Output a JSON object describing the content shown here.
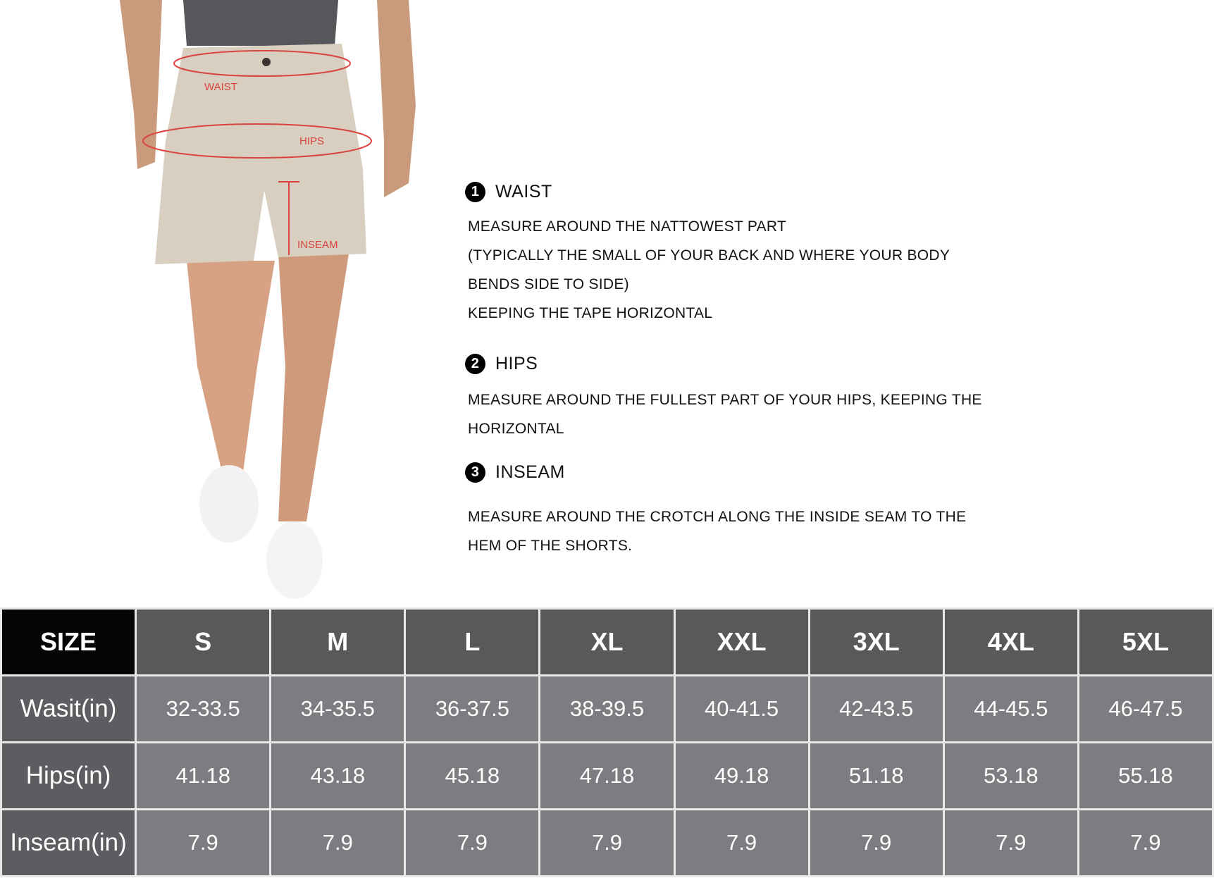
{
  "figure": {
    "labels": {
      "waist": "WAIST",
      "hips": "HIPS",
      "inseam": "INSEAM"
    },
    "measure_color": "#d9443f"
  },
  "sections": [
    {
      "number": "1",
      "title": "WAIST",
      "lines": [
        "MEASURE AROUND THE NATTOWEST PART",
        "(TYPICALLY THE SMALL OF YOUR BACK AND WHERE YOUR BODY",
        "BENDS SIDE TO SIDE)",
        "KEEPING THE TAPE HORIZONTAL"
      ]
    },
    {
      "number": "2",
      "title": "HIPS",
      "lines": [
        "MEASURE AROUND THE FULLEST PART OF YOUR HIPS, KEEPING THE",
        "HORIZONTAL"
      ]
    },
    {
      "number": "3",
      "title": "INSEAM",
      "lines": [
        "MEASURE AROUND THE CROTCH ALONG THE INSIDE SEAM TO THE",
        "HEM OF THE SHORTS."
      ]
    }
  ],
  "table": {
    "header": [
      "SIZE",
      "S",
      "M",
      "L",
      "XL",
      "XXL",
      "3XL",
      "4XL",
      "5XL"
    ],
    "rows": [
      [
        "Wasit(in)",
        "32-33.5",
        "34-35.5",
        "36-37.5",
        "38-39.5",
        "40-41.5",
        "42-43.5",
        "44-45.5",
        "46-47.5"
      ],
      [
        "Hips(in)",
        "41.18",
        "43.18",
        "45.18",
        "47.18",
        "49.18",
        "51.18",
        "53.18",
        "55.18"
      ],
      [
        "Inseam(in)",
        "7.9",
        "7.9",
        "7.9",
        "7.9",
        "7.9",
        "7.9",
        "7.9",
        "7.9"
      ]
    ]
  }
}
